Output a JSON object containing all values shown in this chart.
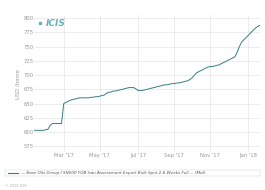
{
  "title": "",
  "icis_text": "ICIS",
  "ylabel": "USD /tonne",
  "legend_label": "— Base Oils Group I SN500 FOB Iran Assessment Export Bulk Spot 2-6 Weeks Full ... (Mid)",
  "copyright": "© 2018 ICIS",
  "yticks": [
    575,
    600,
    625,
    650,
    675,
    700,
    725,
    750,
    775,
    800
  ],
  "ylim": [
    565,
    805
  ],
  "bg_color": "#ffffff",
  "grid_color": "#dedede",
  "line_color": "#3a7d7e",
  "xtick_labels": [
    "Mar '17",
    "May '17",
    "Jul '17",
    "Sep '17",
    "Nov '17",
    "Jan '18"
  ],
  "x_values": [
    0,
    1,
    2,
    3,
    4,
    5,
    6,
    7,
    8,
    9,
    10,
    11,
    12,
    13,
    14,
    15,
    16,
    17,
    18,
    19,
    20,
    21,
    22,
    23,
    24,
    25,
    26,
    27,
    28,
    29,
    30,
    31,
    32,
    33,
    34,
    35,
    36,
    37,
    38,
    39,
    40,
    41,
    42,
    43,
    44,
    45,
    46,
    47,
    48,
    49,
    50,
    51,
    52,
    53,
    54,
    55,
    56,
    57,
    58,
    59,
    60,
    61,
    62,
    63,
    64,
    65,
    66,
    67,
    68,
    69,
    70,
    71,
    72,
    73,
    74,
    75,
    76,
    77,
    78,
    79,
    80,
    81,
    82,
    83,
    84,
    85,
    86,
    87,
    88,
    89,
    90,
    91,
    92,
    93,
    94,
    95,
    96,
    97,
    98,
    99,
    100
  ],
  "y_values": [
    603,
    603,
    603,
    603,
    603,
    604,
    605,
    612,
    615,
    615,
    615,
    615,
    615,
    650,
    652,
    654,
    656,
    657,
    658,
    659,
    660,
    660,
    660,
    660,
    660,
    661,
    661,
    662,
    662,
    663,
    664,
    665,
    668,
    670,
    670,
    672,
    672,
    673,
    674,
    675,
    676,
    677,
    678,
    678,
    678,
    676,
    673,
    673,
    673,
    674,
    675,
    676,
    677,
    678,
    679,
    680,
    681,
    682,
    683,
    683,
    684,
    685,
    685,
    686,
    686,
    687,
    688,
    689,
    690,
    692,
    695,
    700,
    704,
    706,
    708,
    710,
    712,
    714,
    715,
    715,
    716,
    717,
    718,
    720,
    722,
    724,
    726,
    728,
    730,
    732,
    740,
    750,
    758,
    762,
    766,
    770,
    774,
    778,
    782,
    785,
    787
  ],
  "xtick_positions": [
    13,
    29,
    46,
    62,
    78,
    95
  ],
  "figsize": [
    2.65,
    1.9
  ],
  "dpi": 100
}
